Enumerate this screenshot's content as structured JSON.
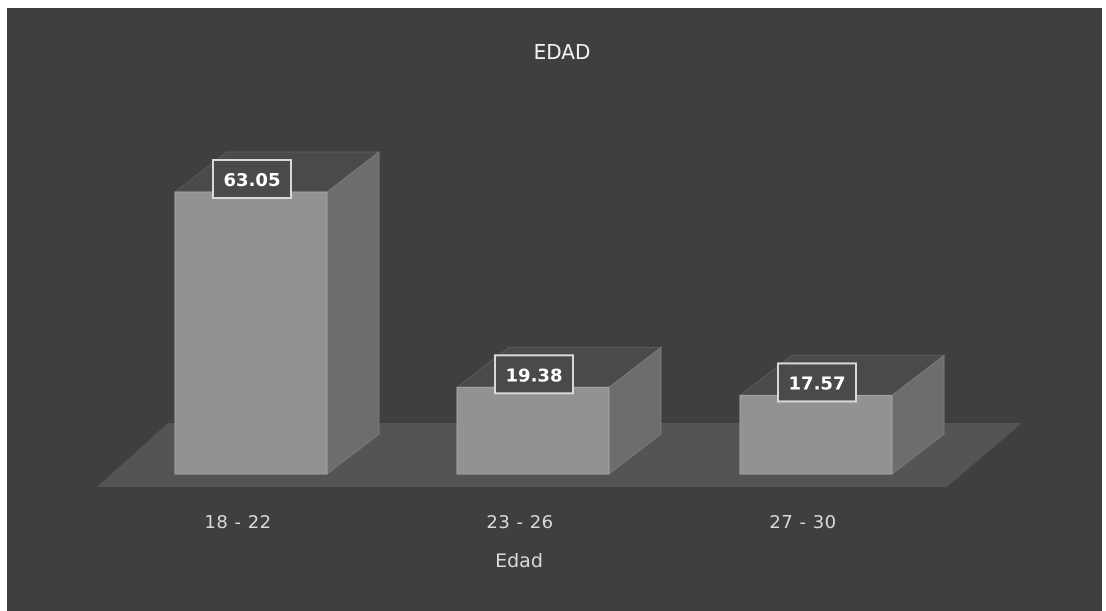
{
  "chart_data": {
    "type": "bar",
    "title": "EDAD",
    "xlabel": "Edad",
    "ylabel": "",
    "categories": [
      "18 - 22",
      "23 - 26",
      "27 - 30"
    ],
    "values": [
      63.05,
      19.38,
      17.57
    ],
    "data_labels": [
      "63.05",
      "19.38",
      "17.57"
    ],
    "ylim": [
      0,
      63.05
    ],
    "grid": false,
    "legend": "none",
    "style": "3d-column",
    "colors": {
      "background": "#3f3f3f",
      "bar_front": "#929292",
      "bar_side": "#6d6d6d",
      "bar_top": "#4a4a4a",
      "floor": "#545454",
      "text": "#d9d9d9"
    }
  }
}
